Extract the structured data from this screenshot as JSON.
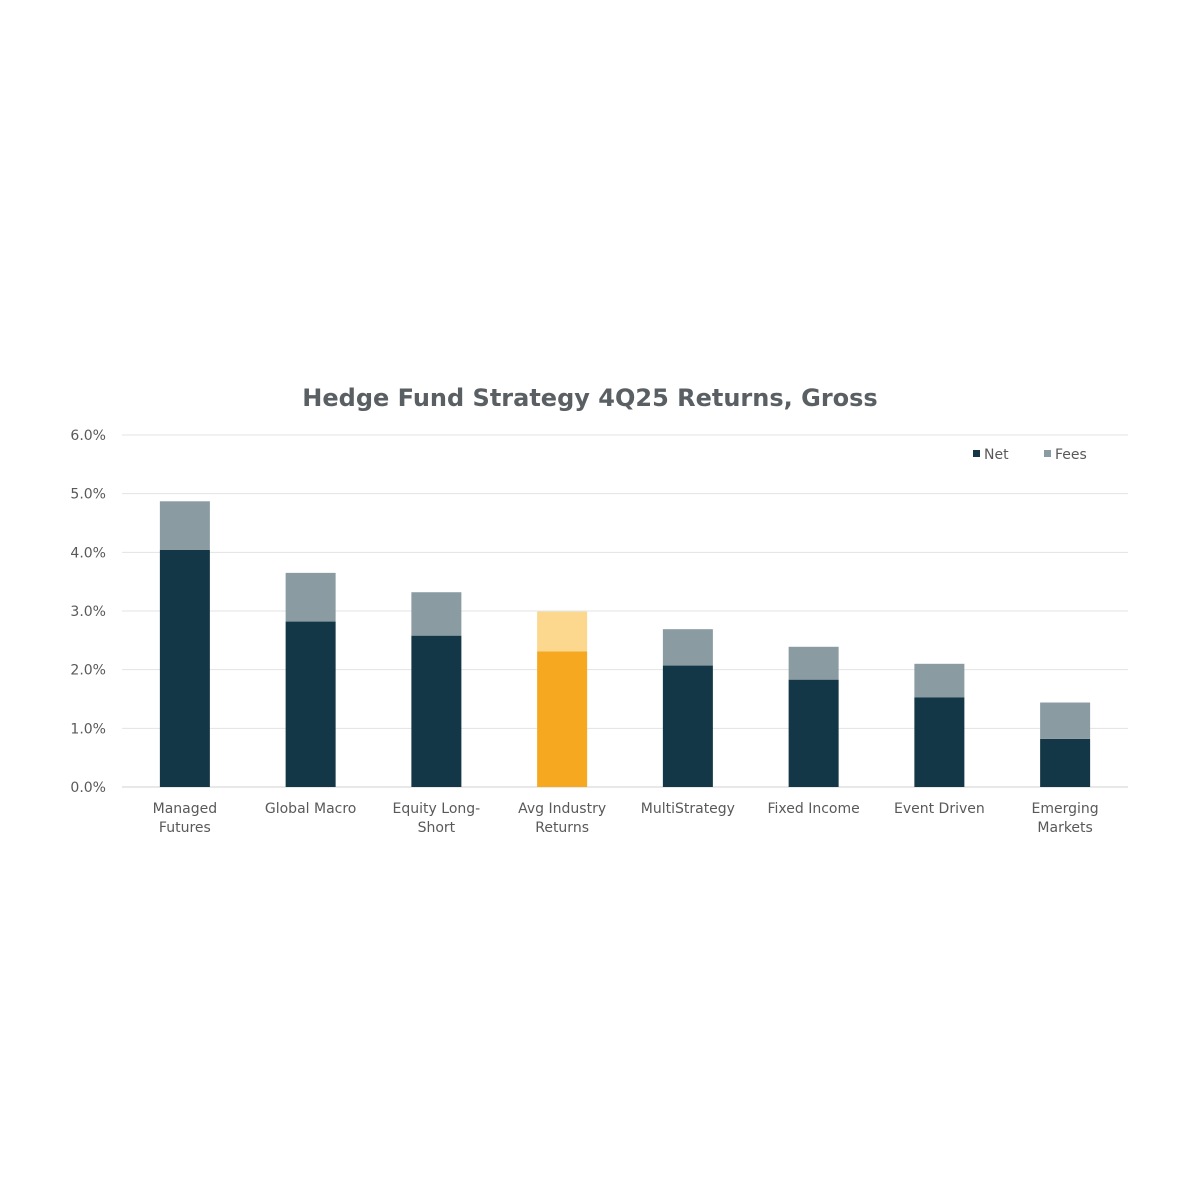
{
  "chart_data": {
    "type": "bar",
    "stacked": true,
    "title": "Hedge Fund Strategy 4Q25 Returns, Gross",
    "xlabel": "",
    "ylabel": "",
    "ylim": [
      0,
      6
    ],
    "y_ticks": [
      "0.0%",
      "1.0%",
      "2.0%",
      "3.0%",
      "4.0%",
      "5.0%",
      "6.0%"
    ],
    "grid": true,
    "legend_position": "top-right",
    "categories": [
      [
        "Managed",
        "Futures"
      ],
      [
        "Global Macro"
      ],
      [
        "Equity Long-",
        "Short"
      ],
      [
        "Avg Industry",
        "Returns"
      ],
      [
        "MultiStrategy"
      ],
      [
        "Fixed Income"
      ],
      [
        "Event Driven"
      ],
      [
        "Emerging",
        "Markets"
      ]
    ],
    "series": [
      {
        "name": "Net",
        "color": "#133746",
        "values": [
          4.04,
          2.82,
          2.58,
          2.31,
          2.07,
          1.83,
          1.53,
          0.82
        ]
      },
      {
        "name": "Fees",
        "color": "#8a9ba2",
        "values": [
          0.83,
          0.83,
          0.74,
          0.68,
          0.62,
          0.56,
          0.57,
          0.62
        ]
      }
    ],
    "highlight": {
      "index": 3,
      "net_color": "#f6a821",
      "fees_color": "#fbd88e"
    }
  }
}
